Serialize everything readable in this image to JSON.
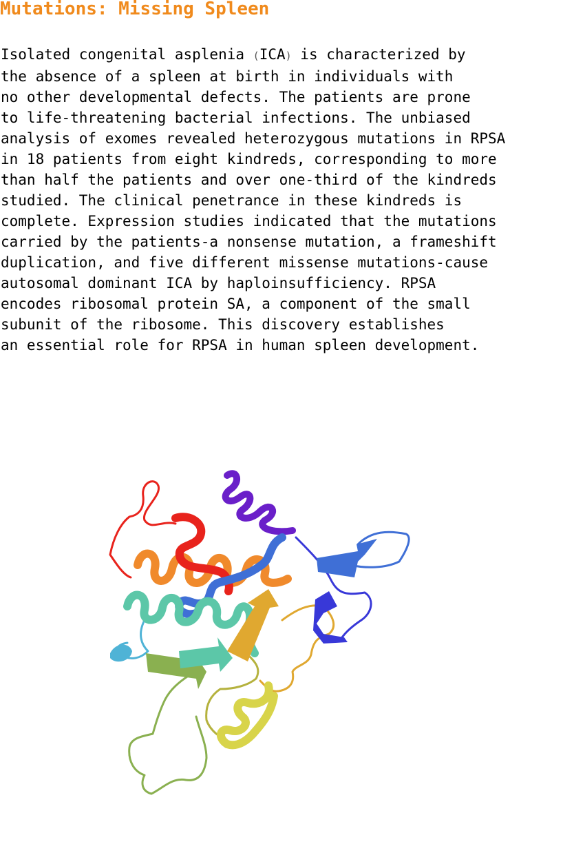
{
  "title": "Mutations: Missing Spleen",
  "abstract": {
    "line1_before": "Isolated congenital asplenia ",
    "paren_open": "(",
    "abbr": "ICA",
    "paren_close": ")",
    "line1_after": " is characterized by",
    "lines": [
      "the absence of a spleen at birth in individuals with",
      "no other developmental defects. The patients are prone",
      "to life-threatening bacterial infections. The unbiased",
      "analysis of exomes revealed heterozygous mutations in RPSA",
      "in 18 patients from eight kindreds, corresponding to more",
      "than half the patients and over one-third of the kindreds",
      "studied. The clinical penetrance in these kindreds is",
      "complete. Expression studies indicated that the mutations",
      "carried by the patients-a nonsense mutation, a frameshift",
      "duplication, and five different missense mutations-cause",
      "autosomal dominant ICA by haploinsufficiency. RPSA",
      "encodes ribosomal protein SA, a component of the small",
      "subunit of the ribosome. This discovery establishes",
      "an essential role for RPSA in human spleen development."
    ]
  },
  "figure": {
    "icon": "protein-ribbon-structure",
    "colors": {
      "red": "#e8231c",
      "orange": "#f08a2c",
      "violet": "#6a1fc9",
      "blue": "#3f6fd6",
      "indigo": "#3838d8",
      "teal": "#5cc7a8",
      "cyan": "#4fb3d6",
      "gold": "#e0a830",
      "yellow": "#d8d44a",
      "green": "#8ab050",
      "olive": "#b5b23e"
    }
  }
}
